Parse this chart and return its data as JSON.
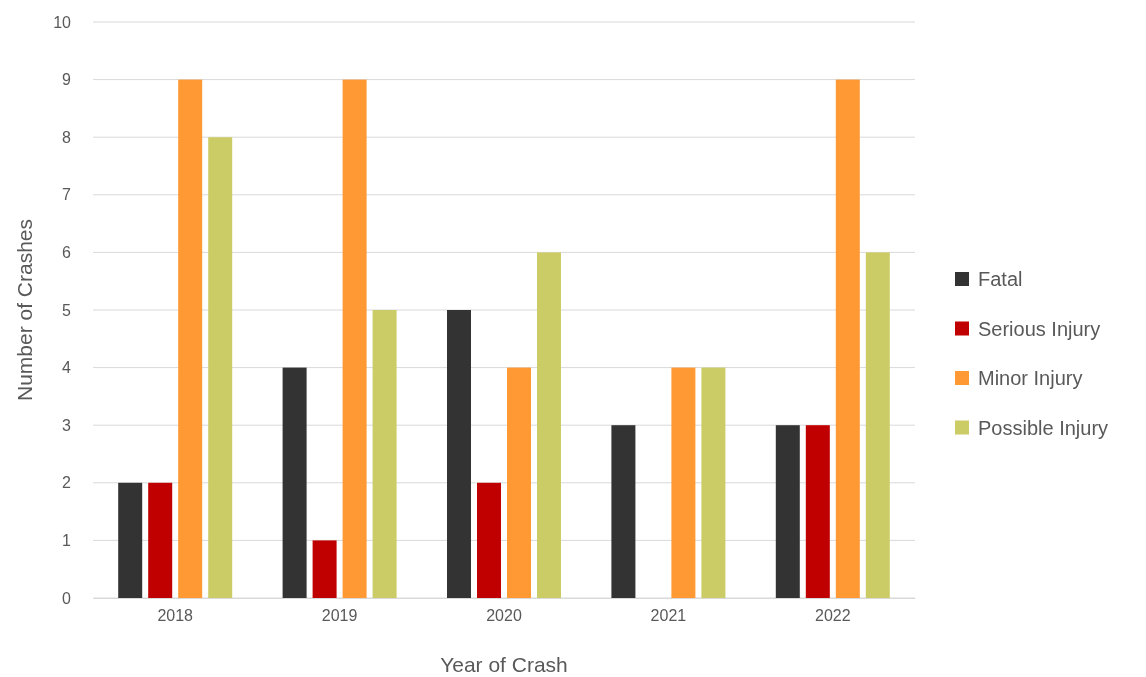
{
  "chart_data": {
    "type": "bar",
    "xlabel": "Year of Crash",
    "ylabel": "Number of Crashes",
    "categories": [
      "2018",
      "2019",
      "2020",
      "2021",
      "2022"
    ],
    "series": [
      {
        "name": "Fatal",
        "color": "#333333",
        "values": [
          2,
          4,
          5,
          3,
          3
        ]
      },
      {
        "name": "Serious Injury",
        "color": "#c00000",
        "values": [
          2,
          1,
          2,
          0,
          3
        ]
      },
      {
        "name": "Minor Injury",
        "color": "#ff9933",
        "values": [
          9,
          9,
          4,
          4,
          9
        ]
      },
      {
        "name": "Possible Injury",
        "color": "#cccc66",
        "values": [
          8,
          5,
          6,
          4,
          6
        ]
      }
    ],
    "ylim": [
      0,
      10
    ],
    "yticks": [
      0,
      1,
      2,
      3,
      4,
      5,
      6,
      7,
      8,
      9,
      10
    ],
    "grid": "y",
    "legend": "right"
  }
}
